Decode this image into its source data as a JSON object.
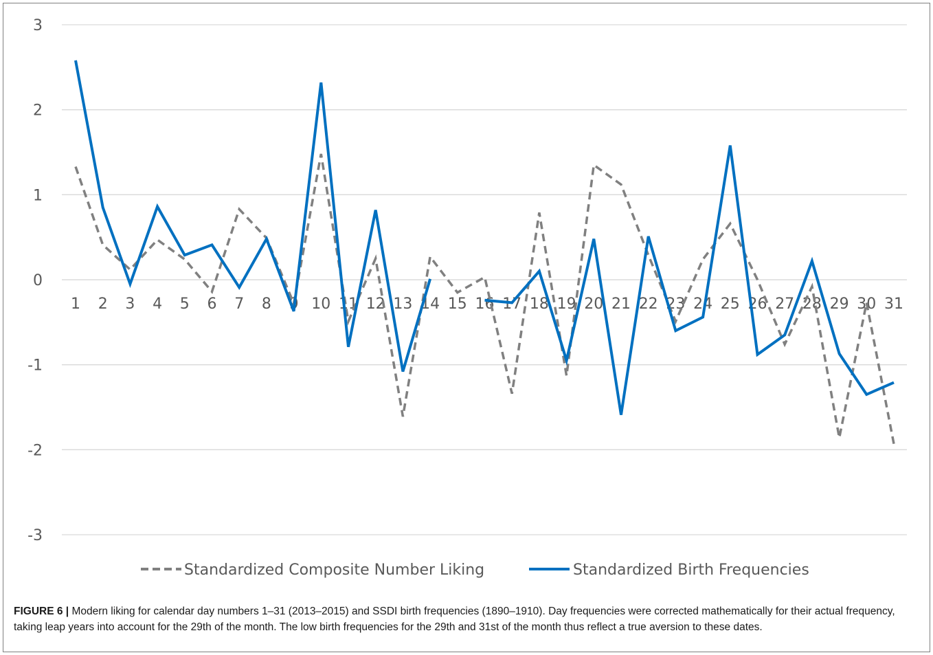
{
  "chart_data": {
    "type": "line",
    "title": "",
    "xlabel": "",
    "ylabel": "",
    "categories": [
      "1",
      "2",
      "3",
      "4",
      "5",
      "6",
      "7",
      "8",
      "9",
      "10",
      "11",
      "12",
      "13",
      "14",
      "15",
      "16",
      "17",
      "18",
      "19",
      "20",
      "21",
      "22",
      "23",
      "24",
      "25",
      "26",
      "27",
      "28",
      "29",
      "30",
      "31"
    ],
    "ylim": [
      -3,
      3
    ],
    "yticks": [
      3,
      2,
      1,
      0,
      -1,
      -2,
      -3
    ],
    "grid": true,
    "legend_position": "bottom",
    "series": [
      {
        "name": "Standardized Composite Number Liking",
        "style": "dashed",
        "color": "#808080",
        "values": [
          1.33,
          0.41,
          0.12,
          0.47,
          0.24,
          -0.14,
          0.83,
          0.49,
          -0.28,
          1.48,
          -0.49,
          0.25,
          -1.61,
          0.27,
          -0.15,
          0.03,
          -1.34,
          0.79,
          -1.13,
          1.35,
          1.12,
          0.29,
          -0.49,
          0.24,
          0.66,
          0.0,
          -0.76,
          -0.08,
          -1.86,
          -0.27,
          -1.93
        ]
      },
      {
        "name": "Standardized Birth Frequencies",
        "style": "solid",
        "color": "#0070c0",
        "values": [
          2.58,
          0.85,
          -0.05,
          0.86,
          0.29,
          0.41,
          -0.09,
          0.48,
          -0.37,
          2.32,
          -0.79,
          0.82,
          -1.08,
          0.01,
          null,
          -0.24,
          -0.27,
          0.1,
          -0.95,
          0.48,
          -1.59,
          0.51,
          -0.6,
          -0.44,
          1.58,
          -0.88,
          -0.65,
          0.22,
          -0.87,
          -1.35,
          -1.21
        ]
      }
    ]
  },
  "caption": {
    "label": "FIGURE 6 |",
    "text": " Modern liking for calendar day numbers 1–31 (2013–2015) and SSDI birth frequencies (1890–1910). Day frequencies were corrected mathematically for their actual frequency, taking leap years into account for the 29th of the month. The low birth frequencies for the 29th and 31st of the month thus reflect a true aversion to these dates."
  }
}
